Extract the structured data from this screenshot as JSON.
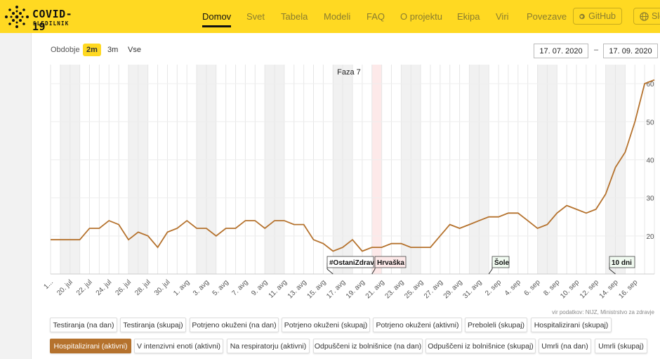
{
  "brand": {
    "title": "COVID-19",
    "subtitle": "SLEDILNIK"
  },
  "nav": {
    "items": [
      "Domov",
      "Svet",
      "Tabela",
      "Modeli",
      "FAQ",
      "O projektu",
      "Ekipa",
      "Viri",
      "Povezave"
    ],
    "active": "Domov",
    "github_label": "GitHub",
    "lang_label": "Slo"
  },
  "controls": {
    "period_label": "Obdobje",
    "periods": [
      "2m",
      "3m",
      "Vse"
    ],
    "active_period": "2m",
    "date_from": "17. 07. 2020",
    "date_sep": "–",
    "date_to": "17. 09. 2020"
  },
  "colors": {
    "accent": "#ffd922",
    "line": "#b5722d",
    "active_button": "#b5722d"
  },
  "chart_data": {
    "type": "line",
    "series": [
      {
        "name": "Hospitalizirani (aktivni)",
        "color": "#b5722d",
        "values": [
          19,
          19,
          19,
          19,
          22,
          22,
          24,
          23,
          19,
          21,
          20,
          17,
          21,
          22,
          24,
          22,
          22,
          20,
          22,
          22,
          24,
          24,
          22,
          24,
          24,
          23,
          23,
          19,
          18,
          16,
          17,
          19,
          16,
          17,
          17,
          18,
          18,
          17,
          17,
          17,
          20,
          23,
          22,
          23,
          24,
          25,
          25,
          26,
          26,
          24,
          22,
          23,
          26,
          28,
          27,
          26,
          27,
          31,
          38,
          42,
          50,
          60,
          61
        ]
      }
    ],
    "x_start": "2020-07-17",
    "x_end": "2020-09-17",
    "x_tick_labels": [
      "1...",
      "20. jul",
      "22. jul",
      "24. jul",
      "26. jul",
      "28. jul",
      "30. jul",
      "1. avg",
      "3. avg",
      "5. avg",
      "7. avg",
      "9. avg",
      "11. avg",
      "13. avg",
      "15. avg",
      "17. avg",
      "19. avg",
      "21. avg",
      "23. avg",
      "25. avg",
      "27. avg",
      "29. avg",
      "31. avg",
      "2. sep",
      "4. sep",
      "6. sep",
      "8. sep",
      "10. sep",
      "12. sep",
      "14. sep",
      "16. sep"
    ],
    "y_ticks": [
      20,
      30,
      40,
      50,
      60
    ],
    "ylim": [
      10,
      65
    ],
    "annotations": {
      "phase": "Faza 7",
      "flags": [
        "#OstaniZdrav",
        "Hrvaška",
        "Šole",
        "10 dni"
      ]
    },
    "grid": true,
    "source": "vir podatkov: NIJZ, Ministrstvo za zdravje"
  },
  "series_buttons": {
    "row1": [
      "Testiranja (na dan)",
      "Testiranja (skupaj)",
      "Potrjeno okuženi (na dan)",
      "Potrjeno okuženi (skupaj)",
      "Potrjeno okuženi (aktivni)",
      "Preboleli (skupaj)",
      "Hospitalizirani (skupaj)"
    ],
    "row2": [
      "Hospitalizirani (aktivni)",
      "V intenzivni enoti (aktivni)",
      "Na respiratorju (aktivni)",
      "Odpuščeni iz bolnišnice (na dan)",
      "Odpuščeni iz bolnišnice (skupaj)",
      "Umrli (na dan)",
      "Umrli (skupaj)"
    ],
    "active": "Hospitalizirani (aktivni)"
  }
}
